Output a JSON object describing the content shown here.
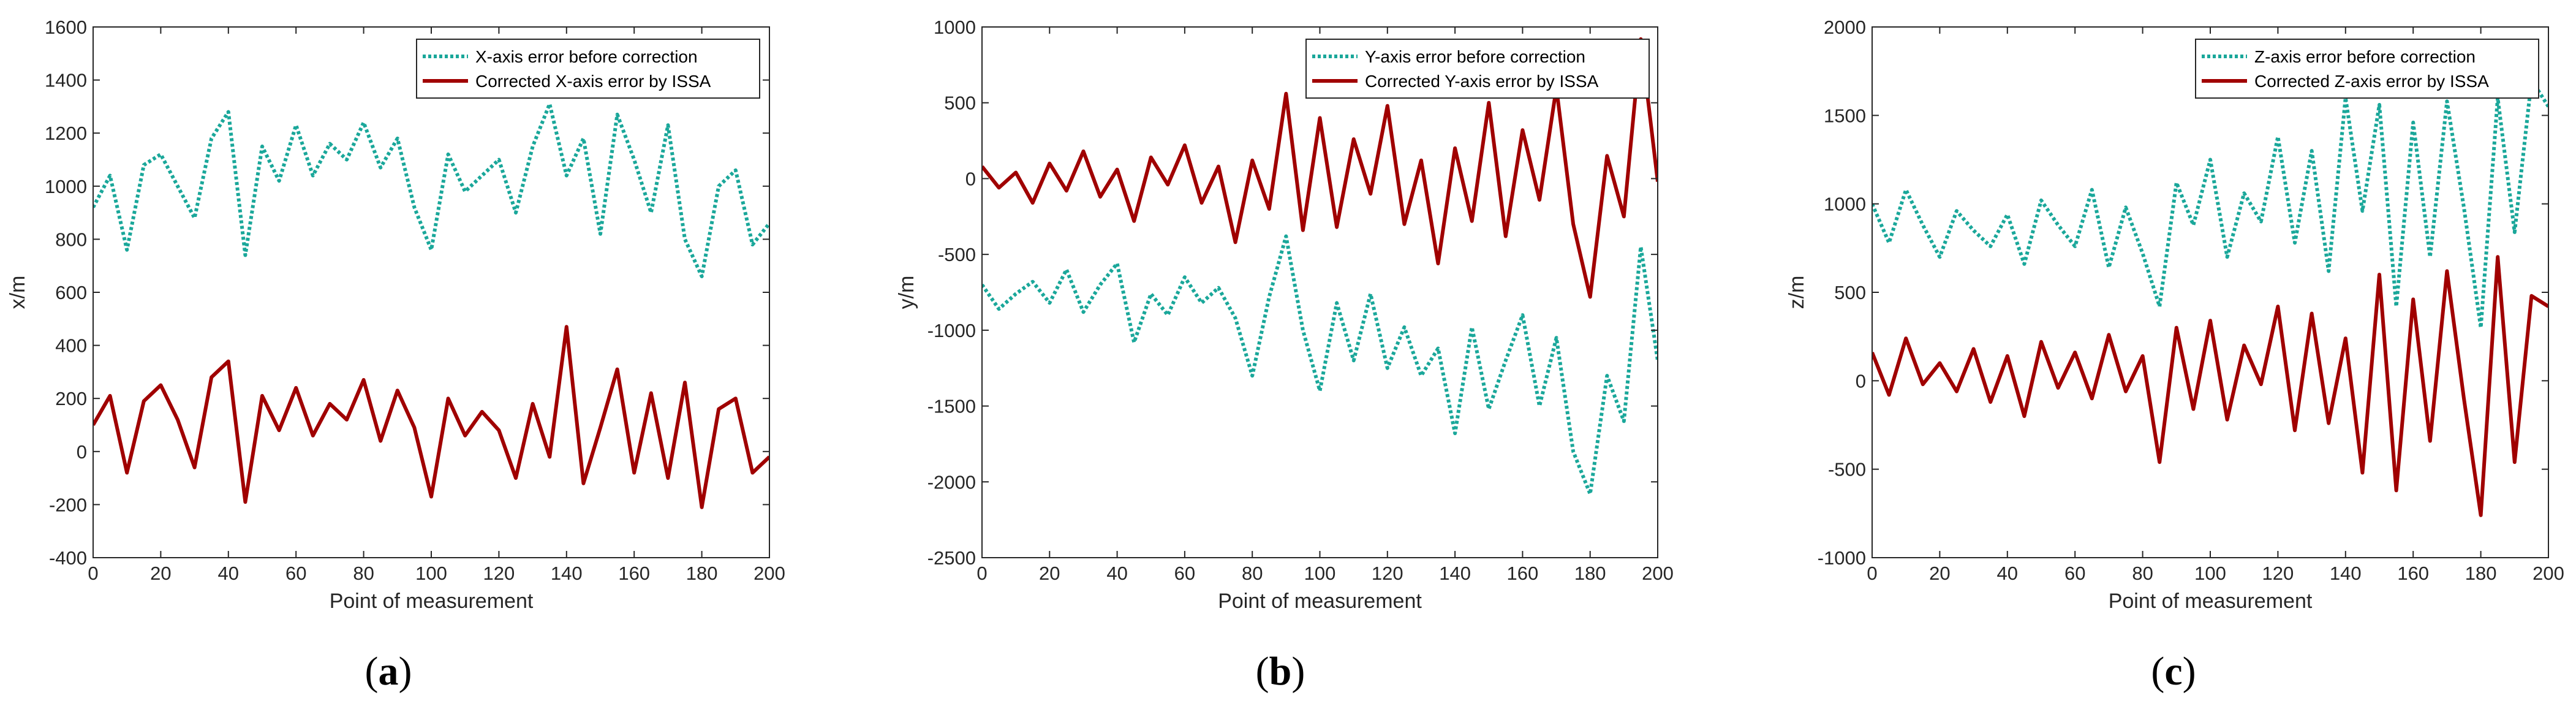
{
  "figure": {
    "panel_labels": [
      {
        "open": "(",
        "letter": "a",
        "close": ")"
      },
      {
        "open": "(",
        "letter": "b",
        "close": ")"
      },
      {
        "open": "(",
        "letter": "c",
        "close": ")"
      }
    ]
  },
  "colors": {
    "before": "#1aa79a",
    "after": "#a00000",
    "axis": "#262626"
  },
  "chart_data": [
    {
      "type": "line",
      "title": "",
      "xlabel": "Point of measurement",
      "ylabel": "x/m",
      "xlim": [
        0,
        200
      ],
      "ylim": [
        -400,
        1600
      ],
      "xticks": [
        0,
        20,
        40,
        60,
        80,
        100,
        120,
        140,
        160,
        180,
        200
      ],
      "yticks": [
        -400,
        -200,
        0,
        200,
        400,
        600,
        800,
        1000,
        1200,
        1400,
        1600
      ],
      "legend_position": "top-right",
      "series": [
        {
          "name": "X-axis error before correction",
          "style": "dotted",
          "color": "#1aa79a",
          "x": [
            0,
            5,
            10,
            15,
            20,
            25,
            30,
            35,
            40,
            45,
            50,
            55,
            60,
            65,
            70,
            75,
            80,
            85,
            90,
            95,
            100,
            105,
            110,
            115,
            120,
            125,
            130,
            135,
            140,
            145,
            150,
            155,
            160,
            165,
            170,
            175,
            180,
            185,
            190,
            195,
            200
          ],
          "values": [
            920,
            1040,
            760,
            1080,
            1120,
            1000,
            880,
            1180,
            1280,
            740,
            1150,
            1020,
            1230,
            1040,
            1160,
            1100,
            1240,
            1070,
            1180,
            920,
            760,
            1120,
            980,
            1040,
            1100,
            900,
            1150,
            1310,
            1040,
            1180,
            820,
            1270,
            1100,
            900,
            1230,
            800,
            660,
            1000,
            1060,
            780,
            860
          ]
        },
        {
          "name": "Corrected X-axis error by ISSA",
          "style": "solid",
          "color": "#a00000",
          "x": [
            0,
            5,
            10,
            15,
            20,
            25,
            30,
            35,
            40,
            45,
            50,
            55,
            60,
            65,
            70,
            75,
            80,
            85,
            90,
            95,
            100,
            105,
            110,
            115,
            120,
            125,
            130,
            135,
            140,
            145,
            150,
            155,
            160,
            165,
            170,
            175,
            180,
            185,
            190,
            195,
            200
          ],
          "values": [
            100,
            210,
            -80,
            190,
            250,
            120,
            -60,
            280,
            340,
            -190,
            210,
            80,
            240,
            60,
            180,
            120,
            270,
            40,
            230,
            90,
            -170,
            200,
            60,
            150,
            80,
            -100,
            180,
            -20,
            470,
            -120,
            90,
            310,
            -80,
            220,
            -100,
            260,
            -210,
            160,
            200,
            -80,
            -20
          ]
        }
      ]
    },
    {
      "type": "line",
      "title": "",
      "xlabel": "Point of measurement",
      "ylabel": "y/m",
      "xlim": [
        0,
        200
      ],
      "ylim": [
        -2500,
        1000
      ],
      "xticks": [
        0,
        20,
        40,
        60,
        80,
        100,
        120,
        140,
        160,
        180,
        200
      ],
      "yticks": [
        -2500,
        -2000,
        -1500,
        -1000,
        -500,
        0,
        500,
        1000
      ],
      "legend_position": "top-right",
      "series": [
        {
          "name": "Y-axis error before correction",
          "style": "dotted",
          "color": "#1aa79a",
          "x": [
            0,
            5,
            10,
            15,
            20,
            25,
            30,
            35,
            40,
            45,
            50,
            55,
            60,
            65,
            70,
            75,
            80,
            85,
            90,
            95,
            100,
            105,
            110,
            115,
            120,
            125,
            130,
            135,
            140,
            145,
            150,
            155,
            160,
            165,
            170,
            175,
            180,
            185,
            190,
            195,
            200
          ],
          "values": [
            -700,
            -860,
            -760,
            -680,
            -820,
            -600,
            -880,
            -700,
            -560,
            -1080,
            -760,
            -900,
            -650,
            -820,
            -720,
            -920,
            -1300,
            -780,
            -380,
            -1000,
            -1400,
            -820,
            -1200,
            -760,
            -1250,
            -980,
            -1300,
            -1120,
            -1680,
            -980,
            -1520,
            -1200,
            -900,
            -1500,
            -1050,
            -1800,
            -2080,
            -1300,
            -1600,
            -450,
            -1200
          ]
        },
        {
          "name": "Corrected Y-axis error by ISSA",
          "style": "solid",
          "color": "#a00000",
          "x": [
            0,
            5,
            10,
            15,
            20,
            25,
            30,
            35,
            40,
            45,
            50,
            55,
            60,
            65,
            70,
            75,
            80,
            85,
            90,
            95,
            100,
            105,
            110,
            115,
            120,
            125,
            130,
            135,
            140,
            145,
            150,
            155,
            160,
            165,
            170,
            175,
            180,
            185,
            190,
            195,
            200
          ],
          "values": [
            80,
            -60,
            40,
            -160,
            100,
            -80,
            180,
            -120,
            60,
            -280,
            140,
            -40,
            220,
            -160,
            80,
            -420,
            120,
            -200,
            560,
            -340,
            400,
            -320,
            260,
            -100,
            480,
            -300,
            120,
            -560,
            200,
            -280,
            500,
            -380,
            320,
            -140,
            600,
            -300,
            -780,
            150,
            -250,
            920,
            -20
          ]
        }
      ]
    },
    {
      "type": "line",
      "title": "",
      "xlabel": "Point of measurement",
      "ylabel": "z/m",
      "xlim": [
        0,
        200
      ],
      "ylim": [
        -1000,
        2000
      ],
      "xticks": [
        0,
        20,
        40,
        60,
        80,
        100,
        120,
        140,
        160,
        180,
        200
      ],
      "yticks": [
        -1000,
        -500,
        0,
        500,
        1000,
        1500,
        2000
      ],
      "legend_position": "top-right",
      "series": [
        {
          "name": "Z-axis error before correction",
          "style": "dotted",
          "color": "#1aa79a",
          "x": [
            0,
            5,
            10,
            15,
            20,
            25,
            30,
            35,
            40,
            45,
            50,
            55,
            60,
            65,
            70,
            75,
            80,
            85,
            90,
            95,
            100,
            105,
            110,
            115,
            120,
            125,
            130,
            135,
            140,
            145,
            150,
            155,
            160,
            165,
            170,
            175,
            180,
            185,
            190,
            195,
            200
          ],
          "values": [
            1000,
            780,
            1080,
            880,
            700,
            960,
            850,
            760,
            940,
            660,
            1020,
            880,
            760,
            1080,
            640,
            980,
            720,
            420,
            1120,
            880,
            1250,
            700,
            1060,
            900,
            1380,
            780,
            1300,
            620,
            1600,
            960,
            1560,
            420,
            1460,
            700,
            1580,
            980,
            300,
            1600,
            840,
            1700,
            1550
          ]
        },
        {
          "name": "Corrected Z-axis error by ISSA",
          "style": "solid",
          "color": "#a00000",
          "x": [
            0,
            5,
            10,
            15,
            20,
            25,
            30,
            35,
            40,
            45,
            50,
            55,
            60,
            65,
            70,
            75,
            80,
            85,
            90,
            95,
            100,
            105,
            110,
            115,
            120,
            125,
            130,
            135,
            140,
            145,
            150,
            155,
            160,
            165,
            170,
            175,
            180,
            185,
            190,
            195,
            200
          ],
          "values": [
            160,
            -80,
            240,
            -20,
            100,
            -60,
            180,
            -120,
            140,
            -200,
            220,
            -40,
            160,
            -100,
            260,
            -60,
            140,
            -460,
            300,
            -160,
            340,
            -220,
            200,
            -20,
            420,
            -280,
            380,
            -240,
            240,
            -520,
            600,
            -620,
            460,
            -340,
            620,
            -100,
            -760,
            700,
            -460,
            480,
            420
          ]
        }
      ]
    }
  ]
}
